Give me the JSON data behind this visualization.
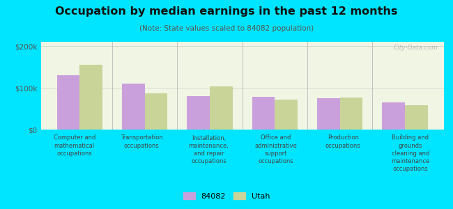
{
  "title": "Occupation by median earnings in the past 12 months",
  "subtitle": "(Note: State values scaled to 84082 population)",
  "categories": [
    "Computer and\nmathematical\noccupations",
    "Transportation\noccupations",
    "Installation,\nmaintenance,\nand repair\noccupations",
    "Office and\nadministrative\nsupport\noccupations",
    "Production\noccupations",
    "Building and\ngrounds\ncleaning and\nmaintenance\noccupations"
  ],
  "values_84082": [
    130000,
    110000,
    80000,
    78000,
    75000,
    65000
  ],
  "values_utah": [
    155000,
    87000,
    103000,
    72000,
    76000,
    58000
  ],
  "color_84082": "#c9a0dc",
  "color_utah": "#c8d498",
  "background_plot": "#f0f5e4",
  "background_fig": "#00e5ff",
  "ylim": [
    0,
    210000
  ],
  "yticks": [
    0,
    100000,
    200000
  ],
  "ytick_labels": [
    "$0",
    "$100k",
    "$200k"
  ],
  "watermark": "City-Data.com",
  "legend_label_84082": "84082",
  "legend_label_utah": "Utah",
  "bar_width": 0.35
}
